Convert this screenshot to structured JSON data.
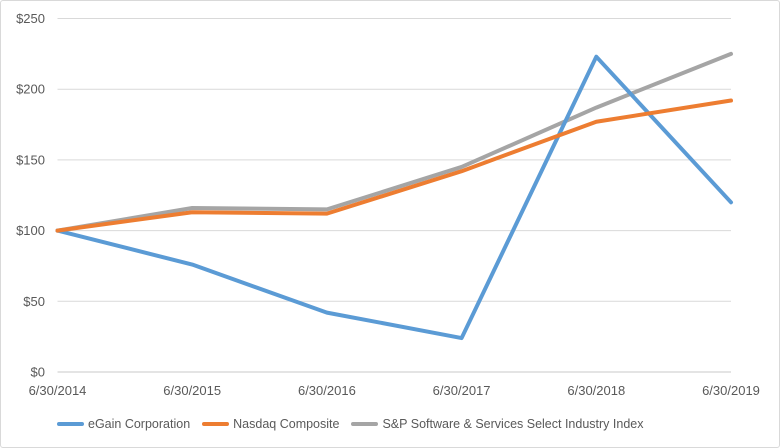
{
  "chart_data": {
    "type": "line",
    "title": "",
    "x_labels": [
      "6/30/2014",
      "6/30/2015",
      "6/30/2016",
      "6/30/2017",
      "6/30/2018",
      "6/30/2019"
    ],
    "y_ticks": [
      "$0",
      "$50",
      "$100",
      "$150",
      "$200",
      "$250"
    ],
    "ylim": [
      0,
      250
    ],
    "y_tick_interval": 50,
    "grid": "horizontal",
    "legend_position": "bottom",
    "series": [
      {
        "name": "eGain Corporation",
        "color": "#5B9BD5",
        "values": [
          100,
          76,
          42,
          24,
          223,
          120
        ]
      },
      {
        "name": "Nasdaq Composite",
        "color": "#ED7D31",
        "values": [
          100,
          113,
          112,
          142,
          177,
          192
        ]
      },
      {
        "name": "S&P Software & Services Select Industry Index",
        "color": "#A5A5A5",
        "values": [
          100,
          116,
          115,
          145,
          187,
          225
        ]
      }
    ]
  },
  "colors": {
    "text": "#595959",
    "gridline": "#D9D9D9",
    "axis_line": "#C9C9C9",
    "border": "#D9D9D9",
    "background": "#FFFFFF"
  }
}
